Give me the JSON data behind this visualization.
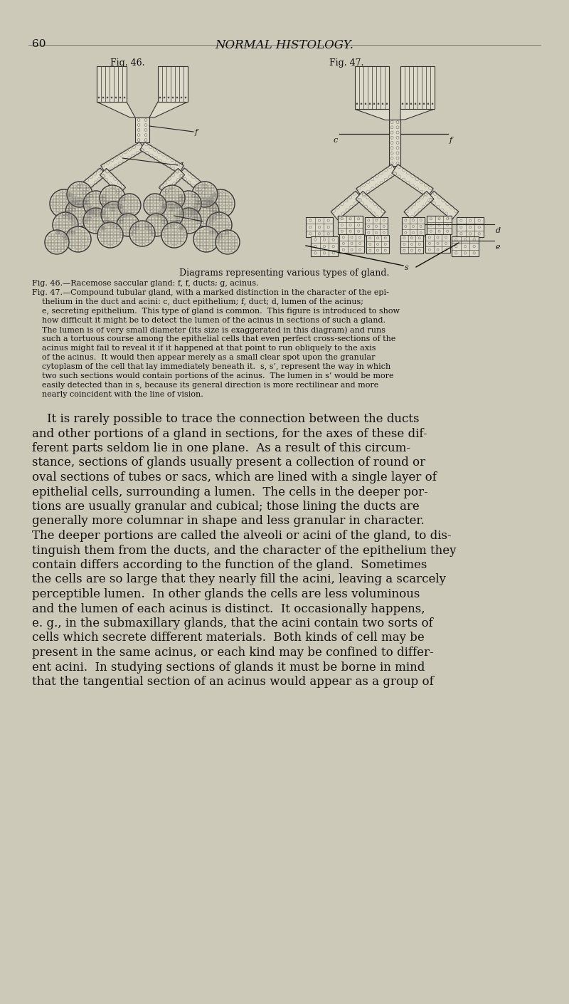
{
  "bg_color": "#cdc9b8",
  "page_number": "60",
  "header_title": "NORMAL HISTOLOGY.",
  "fig46_label": "Fig. 46.",
  "fig47_label": "Fig. 47.",
  "caption_center": "Diagrams representing various types of gland.",
  "caption_fig46": "Fig. 46.—Racemose saccular gland: f, f, ducts; g, acinus.",
  "caption_fig47_lines": [
    "Fig. 47.—Compound tubular gland, with a marked distinction in the character of the epi-",
    "    thelium in the duct and acini: c, duct epithelium; f, duct; d, lumen of the acinus;",
    "    e, secreting epithelium.  This type of gland is common.  This figure is introduced to show",
    "    how difficult it might be to detect the lumen of the acinus in sections of such a gland.",
    "    The lumen is of very small diameter (its size is exaggerated in this diagram) and runs",
    "    such a tortuous course among the epithelial cells that even perfect cross-sections of the",
    "    acinus might fail to reveal it if it happened at that point to run obliquely to the axis",
    "    of the acinus.  It would then appear merely as a small clear spot upon the granular",
    "    cytoplasm of the cell that lay immediately beneath it.  s, s’, represent the way in which",
    "    two such sections would contain portions of the acinus.  The lumen in s’ would be more",
    "    easily detected than in s, because its general direction is more rectilinear and more",
    "    nearly coincident with the line of vision."
  ],
  "body_lines": [
    "    It is rarely possible to trace the connection between the ducts",
    "and other portions of a gland in sections, for the axes of these dif-",
    "ferent parts seldom lie in one plane.  As a result of this circum-",
    "stance, sections of glands usually present a collection of round or",
    "oval sections of tubes or sacs, which are lined with a single layer of",
    "epithelial cells, surrounding a lumen.  The cells in the deeper por-",
    "tions are usually granular and cubical; those lining the ducts are",
    "generally more columnar in shape and less granular in character.",
    "The deeper portions are called the alveoli or acini of the gland, to dis-",
    "tinguish them from the ducts, and the character of the epithelium they",
    "contain differs according to the function of the gland.  Sometimes",
    "the cells are so large that they nearly fill the acini, leaving a scarcely",
    "perceptible lumen.  In other glands the cells are less voluminous",
    "and the lumen of each acinus is distinct.  It occasionally happens,",
    "e. g., in the submaxillary glands, that the acini contain two sorts of",
    "cells which secrete different materials.  Both kinds of cell may be",
    "present in the same acinus, or each kind may be confined to differ-",
    "ent acini.  In studying sections of glands it must be borne in mind",
    "that the tangential section of an acinus would appear as a group of"
  ]
}
